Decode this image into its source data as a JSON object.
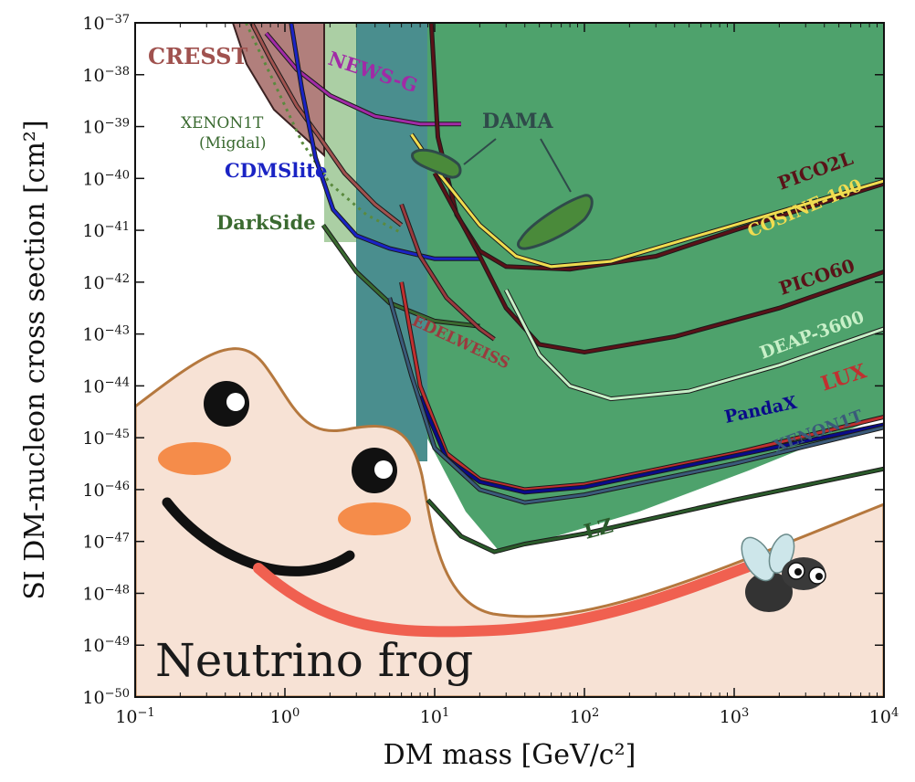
{
  "chart_data": {
    "type": "line",
    "title": "",
    "xlabel": "DM mass [GeV/c²]",
    "ylabel": "SI DM-nucleon cross section [cm²]",
    "xscale": "log",
    "yscale": "log",
    "xlim": [
      0.1,
      10000
    ],
    "ylim": [
      1e-50,
      1e-37
    ],
    "x_ticks": [
      {
        "base": "10",
        "exp": "−1"
      },
      {
        "base": "10",
        "exp": "0"
      },
      {
        "base": "10",
        "exp": "1"
      },
      {
        "base": "10",
        "exp": "2"
      },
      {
        "base": "10",
        "exp": "3"
      },
      {
        "base": "10",
        "exp": "4"
      }
    ],
    "y_ticks": [
      {
        "base": "10",
        "exp": "−37"
      },
      {
        "base": "10",
        "exp": "−38"
      },
      {
        "base": "10",
        "exp": "−39"
      },
      {
        "base": "10",
        "exp": "−40"
      },
      {
        "base": "10",
        "exp": "−41"
      },
      {
        "base": "10",
        "exp": "−42"
      },
      {
        "base": "10",
        "exp": "−43"
      },
      {
        "base": "10",
        "exp": "−44"
      },
      {
        "base": "10",
        "exp": "−45"
      },
      {
        "base": "10",
        "exp": "−46"
      },
      {
        "base": "10",
        "exp": "−47"
      },
      {
        "base": "10",
        "exp": "−48"
      },
      {
        "base": "10",
        "exp": "−49"
      },
      {
        "base": "10",
        "exp": "−50"
      }
    ],
    "series": [
      {
        "name": "CRESST",
        "color": "#a0524f",
        "points": [
          [
            0.6,
            -37.0
          ],
          [
            0.8,
            -37.7
          ],
          [
            1.2,
            -38.6
          ],
          [
            1.7,
            -39.2
          ],
          [
            2.5,
            -39.9
          ],
          [
            4,
            -40.5
          ],
          [
            6,
            -40.9
          ]
        ]
      },
      {
        "name": "NEWS-G",
        "color": "#a12aa6",
        "points": [
          [
            0.75,
            -37.2
          ],
          [
            1.2,
            -37.9
          ],
          [
            2,
            -38.4
          ],
          [
            4,
            -38.8
          ],
          [
            8,
            -38.95
          ],
          [
            15,
            -38.95
          ]
        ]
      },
      {
        "name": "XENON1T (Migdal)",
        "color": "#5a8a3e",
        "dashed": true,
        "points": [
          [
            0.55,
            -37.0
          ],
          [
            0.8,
            -38.0
          ],
          [
            1.3,
            -39.3
          ],
          [
            2,
            -40.1
          ],
          [
            3.5,
            -40.7
          ],
          [
            6,
            -41.05
          ]
        ]
      },
      {
        "name": "CDMSlite",
        "color": "#1a23c4",
        "points": [
          [
            1.1,
            -37.0
          ],
          [
            1.3,
            -38.3
          ],
          [
            1.6,
            -39.6
          ],
          [
            2.1,
            -40.6
          ],
          [
            3,
            -41.1
          ],
          [
            5,
            -41.35
          ],
          [
            10,
            -41.55
          ],
          [
            20,
            -41.55
          ]
        ]
      },
      {
        "name": "DarkSide",
        "color": "#3a6a30",
        "points": [
          [
            1.8,
            -40.9
          ],
          [
            3,
            -41.8
          ],
          [
            5,
            -42.4
          ],
          [
            10,
            -42.75
          ],
          [
            20,
            -42.85
          ]
        ]
      },
      {
        "name": "EDELWEISS",
        "color": "#9a3a3e",
        "points": [
          [
            6,
            -40.5
          ],
          [
            8,
            -41.5
          ],
          [
            12,
            -42.3
          ],
          [
            20,
            -42.9
          ],
          [
            25,
            -43.1
          ]
        ]
      },
      {
        "name": "PICO2L",
        "color": "#5a1218",
        "points": [
          [
            9.5,
            -37.0
          ],
          [
            10.5,
            -39.2
          ],
          [
            14,
            -40.7
          ],
          [
            20,
            -41.4
          ],
          [
            30,
            -41.7
          ],
          [
            80,
            -41.75
          ],
          [
            300,
            -41.5
          ],
          [
            1000,
            -41.0
          ],
          [
            10000,
            -40.1
          ]
        ]
      },
      {
        "name": "COSINE-100",
        "color": "#f0dc50",
        "points": [
          [
            7,
            -39.15
          ],
          [
            10,
            -39.8
          ],
          [
            20,
            -40.9
          ],
          [
            35,
            -41.5
          ],
          [
            60,
            -41.7
          ],
          [
            150,
            -41.6
          ],
          [
            1000,
            -40.9
          ],
          [
            10000,
            -40.05
          ]
        ]
      },
      {
        "name": "PICO60",
        "color": "#5a1218",
        "points": [
          [
            10,
            -39.9
          ],
          [
            20,
            -41.5
          ],
          [
            30,
            -42.5
          ],
          [
            50,
            -43.2
          ],
          [
            100,
            -43.35
          ],
          [
            400,
            -43.05
          ],
          [
            2000,
            -42.5
          ],
          [
            10000,
            -41.8
          ]
        ]
      },
      {
        "name": "DEAP-3600",
        "color": "#c8f0c8",
        "points": [
          [
            30,
            -42.15
          ],
          [
            50,
            -43.4
          ],
          [
            80,
            -44.0
          ],
          [
            150,
            -44.25
          ],
          [
            500,
            -44.1
          ],
          [
            2000,
            -43.6
          ],
          [
            10000,
            -42.9
          ]
        ]
      },
      {
        "name": "LUX",
        "color": "#c03030",
        "points": [
          [
            6,
            -42.0
          ],
          [
            8,
            -44.0
          ],
          [
            12,
            -45.3
          ],
          [
            20,
            -45.8
          ],
          [
            40,
            -46.0
          ],
          [
            100,
            -45.9
          ],
          [
            1000,
            -45.3
          ],
          [
            10000,
            -44.6
          ]
        ]
      },
      {
        "name": "PandaX",
        "color": "#0a0a8a",
        "points": [
          [
            8,
            -44.2
          ],
          [
            12,
            -45.4
          ],
          [
            20,
            -45.85
          ],
          [
            40,
            -46.05
          ],
          [
            100,
            -45.95
          ],
          [
            1000,
            -45.35
          ],
          [
            10000,
            -44.75
          ]
        ]
      },
      {
        "name": "XENON1T",
        "color": "#3a5a7a",
        "points": [
          [
            5,
            -42.3
          ],
          [
            7,
            -43.8
          ],
          [
            10,
            -45.2
          ],
          [
            20,
            -46.0
          ],
          [
            40,
            -46.25
          ],
          [
            100,
            -46.1
          ],
          [
            1000,
            -45.5
          ],
          [
            10000,
            -44.8
          ]
        ]
      },
      {
        "name": "LZ",
        "color": "#2a5a2a",
        "points": [
          [
            9,
            -46.2
          ],
          [
            15,
            -46.9
          ],
          [
            25,
            -47.2
          ],
          [
            40,
            -47.05
          ],
          [
            100,
            -46.85
          ],
          [
            1000,
            -46.2
          ],
          [
            10000,
            -45.6
          ]
        ]
      }
    ],
    "regions": [
      {
        "name": "DAMA",
        "color": "#4a8a3a",
        "ranges": [
          [
            12,
            -40.0
          ],
          [
            80,
            -41.2
          ]
        ]
      }
    ],
    "annotations": [
      {
        "text": "CRESST",
        "color": "#a0524f"
      },
      {
        "text": "NEWS-G",
        "color": "#a12aa6"
      },
      {
        "text": "XENON1T",
        "color": "#3a6a30"
      },
      {
        "text": "(Migdal)",
        "color": "#3a6a30"
      },
      {
        "text": "CDMSlite",
        "color": "#1a23c4"
      },
      {
        "text": "DarkSide",
        "color": "#3a6a30"
      },
      {
        "text": "EDELWEISS",
        "color": "#9a3a3e"
      },
      {
        "text": "DAMA",
        "color": "#2f4a4a"
      },
      {
        "text": "PICO2L",
        "color": "#5a1218"
      },
      {
        "text": "COSINE-100",
        "color": "#f0dc50"
      },
      {
        "text": "PICO60",
        "color": "#5a1218"
      },
      {
        "text": "DEAP-3600",
        "color": "#c8f0c8"
      },
      {
        "text": "LUX",
        "color": "#c03030"
      },
      {
        "text": "PandaX",
        "color": "#0a0a8a"
      },
      {
        "text": "XENON1T",
        "color": "#3a5a7a"
      },
      {
        "text": "LZ",
        "color": "#2a5a2a"
      },
      {
        "text": "Neutrino frog",
        "color": "#1a1a1a"
      }
    ],
    "neutrino_fog": {
      "color": "#f7e2d5",
      "edge": "#b5783e"
    },
    "grid": false,
    "legend": "none"
  }
}
